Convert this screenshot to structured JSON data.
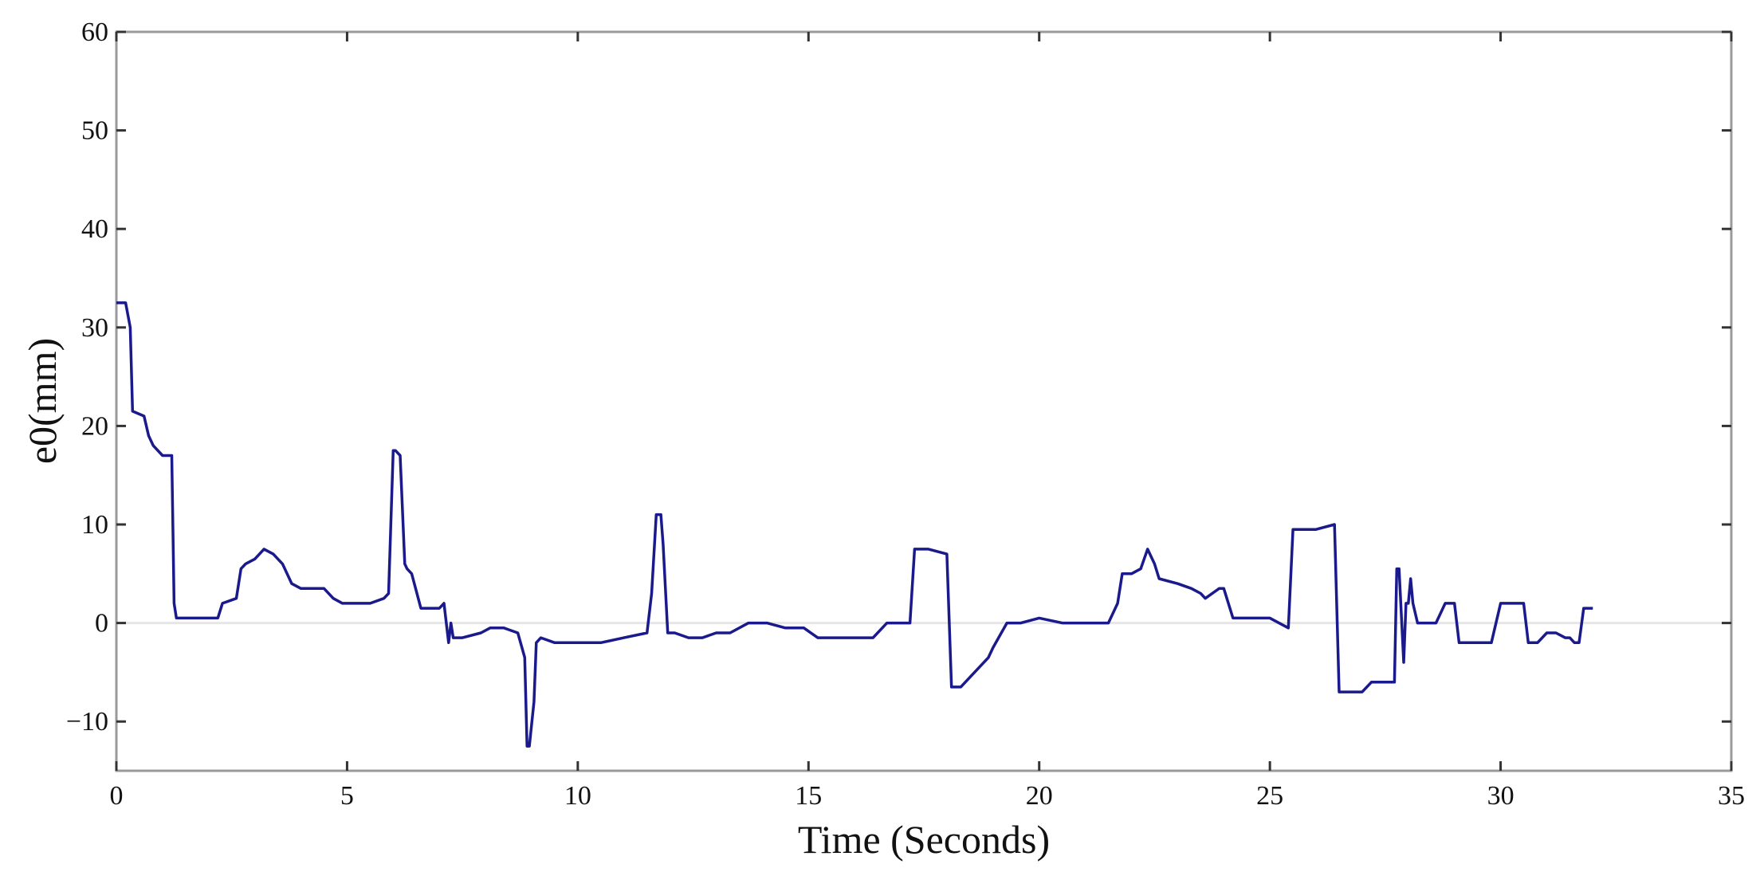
{
  "chart_data": {
    "type": "line",
    "title": "",
    "xlabel": "Time (Seconds)",
    "ylabel": "e0(mm)",
    "xlim": [
      0,
      35
    ],
    "ylim": [
      -15,
      60
    ],
    "xticks": [
      0,
      5,
      10,
      15,
      20,
      25,
      30,
      35
    ],
    "xtick_labels": [
      "0",
      "5",
      "10",
      "15",
      "20",
      "25",
      "30",
      "35"
    ],
    "yticks": [
      -10,
      0,
      10,
      20,
      30,
      40,
      50,
      60
    ],
    "ytick_labels": [
      "−10",
      "0",
      "10",
      "20",
      "30",
      "40",
      "50",
      "60"
    ],
    "grid": false,
    "zero_line": true,
    "line_color": "#1a1a8c",
    "zero_line_color": "#e6e6e6",
    "frame_color": "#9a9a9a",
    "series": [
      {
        "x": [
          0,
          0.2,
          0.3,
          0.35,
          0.6,
          0.7,
          0.8,
          1.0,
          1.1,
          1.2,
          1.25,
          1.3,
          2.2,
          2.3,
          2.6,
          2.7,
          2.8,
          3.0,
          3.2,
          3.4,
          3.6,
          3.8,
          4.0,
          4.5,
          4.7,
          4.9,
          5.0,
          5.5,
          5.8,
          5.9,
          6.0,
          6.05,
          6.15,
          6.25,
          6.3,
          6.4,
          6.6,
          6.65,
          6.7,
          7.0,
          7.1,
          7.2,
          7.25,
          7.3,
          7.4,
          7.5,
          7.9,
          8.1,
          8.4,
          8.7,
          8.85,
          8.9,
          8.95,
          9.05,
          9.1,
          9.2,
          9.5,
          10.0,
          10.5,
          11.0,
          11.5,
          11.6,
          11.7,
          11.8,
          11.85,
          11.95,
          12.0,
          12.1,
          12.4,
          12.7,
          13.0,
          13.3,
          13.7,
          14.1,
          14.5,
          14.9,
          15.2,
          15.6,
          16.0,
          16.4,
          16.7,
          17.0,
          17.2,
          17.3,
          17.6,
          18.0,
          18.1,
          18.3,
          18.5,
          18.7,
          18.9,
          19.0,
          19.3,
          19.6,
          20.0,
          20.5,
          21.0,
          21.5,
          21.7,
          21.8,
          22.0,
          22.2,
          22.35,
          22.5,
          22.6,
          23.0,
          23.3,
          23.5,
          23.6,
          23.9,
          24.0,
          24.2,
          24.5,
          24.8,
          25.0,
          25.4,
          25.5,
          26.0,
          26.4,
          26.5,
          26.9,
          27.0,
          27.2,
          27.4,
          27.7,
          27.75,
          27.8,
          27.9,
          27.95,
          28.0,
          28.05,
          28.1,
          28.2,
          28.4,
          28.6,
          28.8,
          29.0,
          29.1,
          29.5,
          29.8,
          30.0,
          30.2,
          30.5,
          30.6,
          30.8,
          31.0,
          31.2,
          31.4,
          31.5,
          31.6,
          31.7,
          31.8,
          32.0
        ],
        "y": [
          32.5,
          32.5,
          30,
          21.5,
          21,
          19,
          18,
          17,
          17,
          17,
          2,
          0.5,
          0.5,
          2,
          2.5,
          5.5,
          6,
          6.5,
          7.5,
          7,
          6,
          4,
          3.5,
          3.5,
          2.5,
          2,
          2,
          2,
          2.5,
          3,
          17.5,
          17.5,
          17,
          6,
          5.5,
          5,
          1.5,
          1.5,
          1.5,
          1.5,
          2,
          -2,
          0,
          -1.5,
          -1.5,
          -1.5,
          -1,
          -0.5,
          -0.5,
          -1,
          -3.5,
          -12.5,
          -12.5,
          -8,
          -2,
          -1.5,
          -2,
          -2,
          -2,
          -1.5,
          -1,
          3,
          11,
          11,
          8,
          -1,
          -1,
          -1,
          -1.5,
          -1.5,
          -1,
          -1,
          0,
          0,
          -0.5,
          -0.5,
          -1.5,
          -1.5,
          -1.5,
          -1.5,
          0,
          0,
          0,
          7.5,
          7.5,
          7,
          -6.5,
          -6.5,
          -5.5,
          -4.5,
          -3.5,
          -2.5,
          0,
          0,
          0.5,
          0,
          0,
          0,
          2,
          5,
          5,
          5.5,
          7.5,
          6,
          4.5,
          4,
          3.5,
          3,
          2.5,
          3.5,
          3.5,
          0.5,
          0.5,
          0.5,
          0.5,
          -0.5,
          9.5,
          9.5,
          10,
          -7,
          -7,
          -7,
          -6,
          -6,
          -6,
          5.5,
          5.5,
          -4,
          2,
          2,
          4.5,
          2,
          0,
          0,
          0,
          2,
          2,
          -2,
          -2,
          -2,
          2,
          2,
          2,
          -2,
          -2,
          -1,
          -1,
          -1.5,
          -1.5,
          -2,
          -2,
          1.5,
          1.5
        ]
      }
    ]
  }
}
